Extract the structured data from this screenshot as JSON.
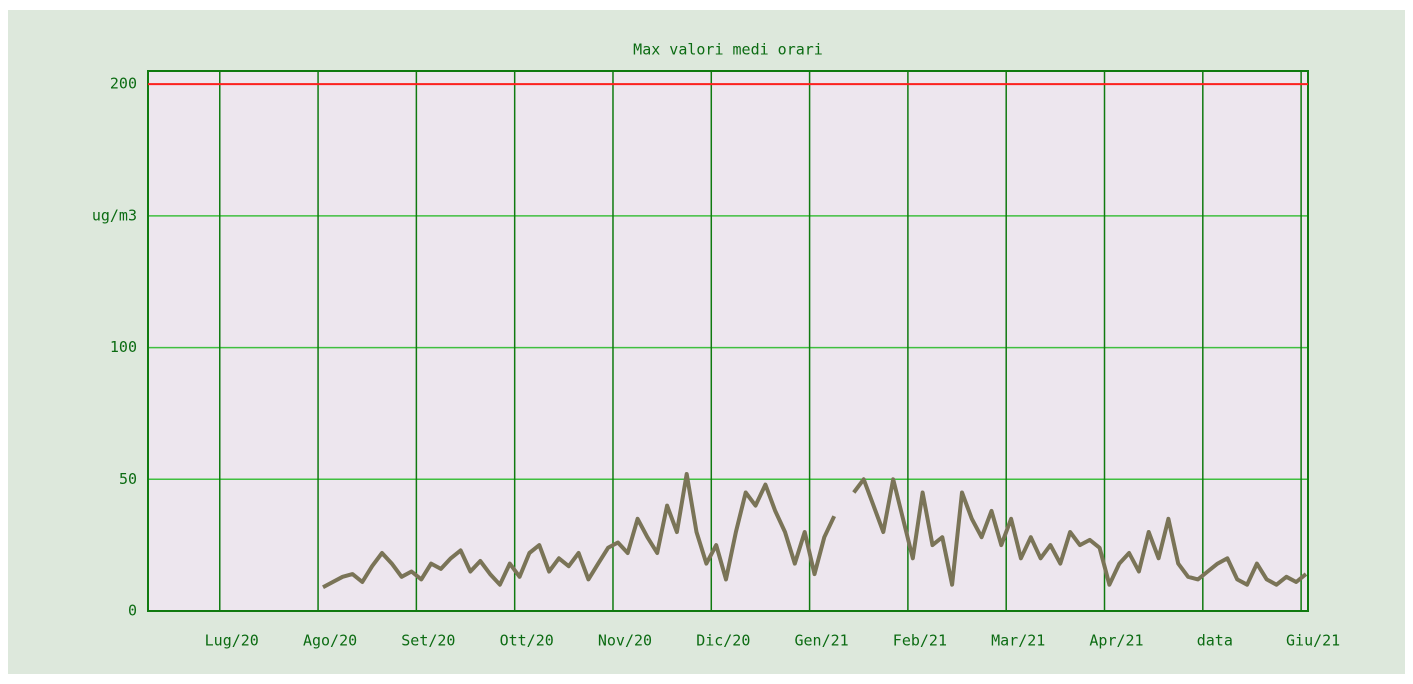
{
  "chart_data": {
    "type": "line",
    "title": "Max valori medi orari",
    "xlim": [
      -0.73,
      11.07
    ],
    "xticks": [
      {
        "value": 0,
        "label": "Lug/20"
      },
      {
        "value": 1,
        "label": "Ago/20"
      },
      {
        "value": 2,
        "label": "Set/20"
      },
      {
        "value": 3,
        "label": "Ott/20"
      },
      {
        "value": 4,
        "label": "Nov/20"
      },
      {
        "value": 5,
        "label": "Dic/20"
      },
      {
        "value": 6,
        "label": "Gen/21"
      },
      {
        "value": 7,
        "label": "Feb/21"
      },
      {
        "value": 8,
        "label": "Mar/21"
      },
      {
        "value": 9,
        "label": "Apr/21"
      },
      {
        "value": 10,
        "label": "data"
      },
      {
        "value": 11,
        "label": "Giu/21"
      }
    ],
    "ylim": [
      0,
      205
    ],
    "yticks": [
      0,
      50,
      100,
      {
        "value": 150,
        "label": "ug/m3"
      },
      200
    ],
    "grid": true,
    "reference_line": {
      "value": 200,
      "color": "#ff2020"
    },
    "series": [
      {
        "color": "#7a7457",
        "x": [
          1.05,
          1.15,
          1.25,
          1.35,
          1.45,
          1.55,
          1.65,
          1.75,
          1.85,
          1.95,
          2.05,
          2.15,
          2.25,
          2.35,
          2.45,
          2.55,
          2.65,
          2.75,
          2.85,
          2.95,
          3.05,
          3.15,
          3.25,
          3.35,
          3.45,
          3.55,
          3.65,
          3.75,
          3.85,
          3.95,
          4.05,
          4.15,
          4.25,
          4.35,
          4.45,
          4.55,
          4.65,
          4.75,
          4.85,
          4.95,
          5.05,
          5.15,
          5.25,
          5.35,
          5.45,
          5.55,
          5.65,
          5.75,
          5.85,
          5.95,
          6.05,
          6.15,
          6.25,
          6.35,
          6.45,
          6.55,
          6.65,
          6.75,
          6.85,
          6.95,
          7.05,
          7.15,
          7.25,
          7.35,
          7.45,
          7.55,
          7.65,
          7.75,
          7.85,
          7.95,
          8.05,
          8.15,
          8.25,
          8.35,
          8.45,
          8.55,
          8.65,
          8.75,
          8.85,
          8.95,
          9.05,
          9.15,
          9.25,
          9.35,
          9.45,
          9.55,
          9.65,
          9.75,
          9.85,
          9.95,
          10.05,
          10.15,
          10.25,
          10.35,
          10.45,
          10.55,
          10.65,
          10.75,
          10.85,
          10.95,
          11.05
        ],
        "values": [
          9,
          11,
          13,
          14,
          11,
          17,
          22,
          18,
          13,
          15,
          12,
          18,
          16,
          20,
          23,
          15,
          19,
          14,
          10,
          18,
          13,
          22,
          25,
          15,
          20,
          17,
          22,
          12,
          18,
          24,
          26,
          22,
          35,
          28,
          22,
          40,
          30,
          52,
          30,
          18,
          25,
          12,
          30,
          45,
          40,
          48,
          38,
          30,
          18,
          30,
          14,
          28,
          36,
          null,
          45,
          50,
          40,
          30,
          50,
          35,
          20,
          45,
          25,
          28,
          10,
          45,
          35,
          28,
          38,
          25,
          35,
          20,
          28,
          20,
          25,
          18,
          30,
          25,
          27,
          24,
          10,
          18,
          22,
          15,
          30,
          20,
          35,
          18,
          13,
          12,
          15,
          18,
          20,
          12,
          10,
          18,
          12,
          10,
          13,
          11,
          14
        ]
      }
    ]
  }
}
